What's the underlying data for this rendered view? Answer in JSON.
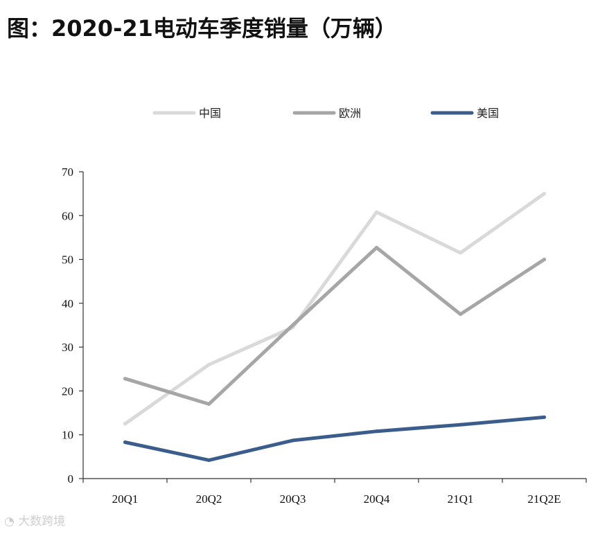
{
  "header": {
    "title": "图：2020-21电动车季度销量（万辆）"
  },
  "watermark": {
    "text": "大数跨境"
  },
  "chart_data": {
    "type": "line",
    "categories": [
      "20Q1",
      "20Q2",
      "20Q3",
      "20Q4",
      "21Q1",
      "21Q2E"
    ],
    "ylim": [
      0,
      70
    ],
    "yticks": [
      0,
      10,
      20,
      30,
      40,
      50,
      60,
      70
    ],
    "grid": false,
    "legend_position": "top",
    "series": [
      {
        "name": "中国",
        "color": "#d9d9d9",
        "values": [
          12.5,
          26,
          34.5,
          60.8,
          51.5,
          65
        ]
      },
      {
        "name": "欧洲",
        "color": "#a6a6a6",
        "values": [
          22.8,
          17,
          35,
          52.7,
          37.5,
          50
        ]
      },
      {
        "name": "美国",
        "color": "#3a5d8c",
        "values": [
          8.3,
          4.2,
          8.7,
          10.8,
          12.3,
          14
        ]
      }
    ]
  }
}
